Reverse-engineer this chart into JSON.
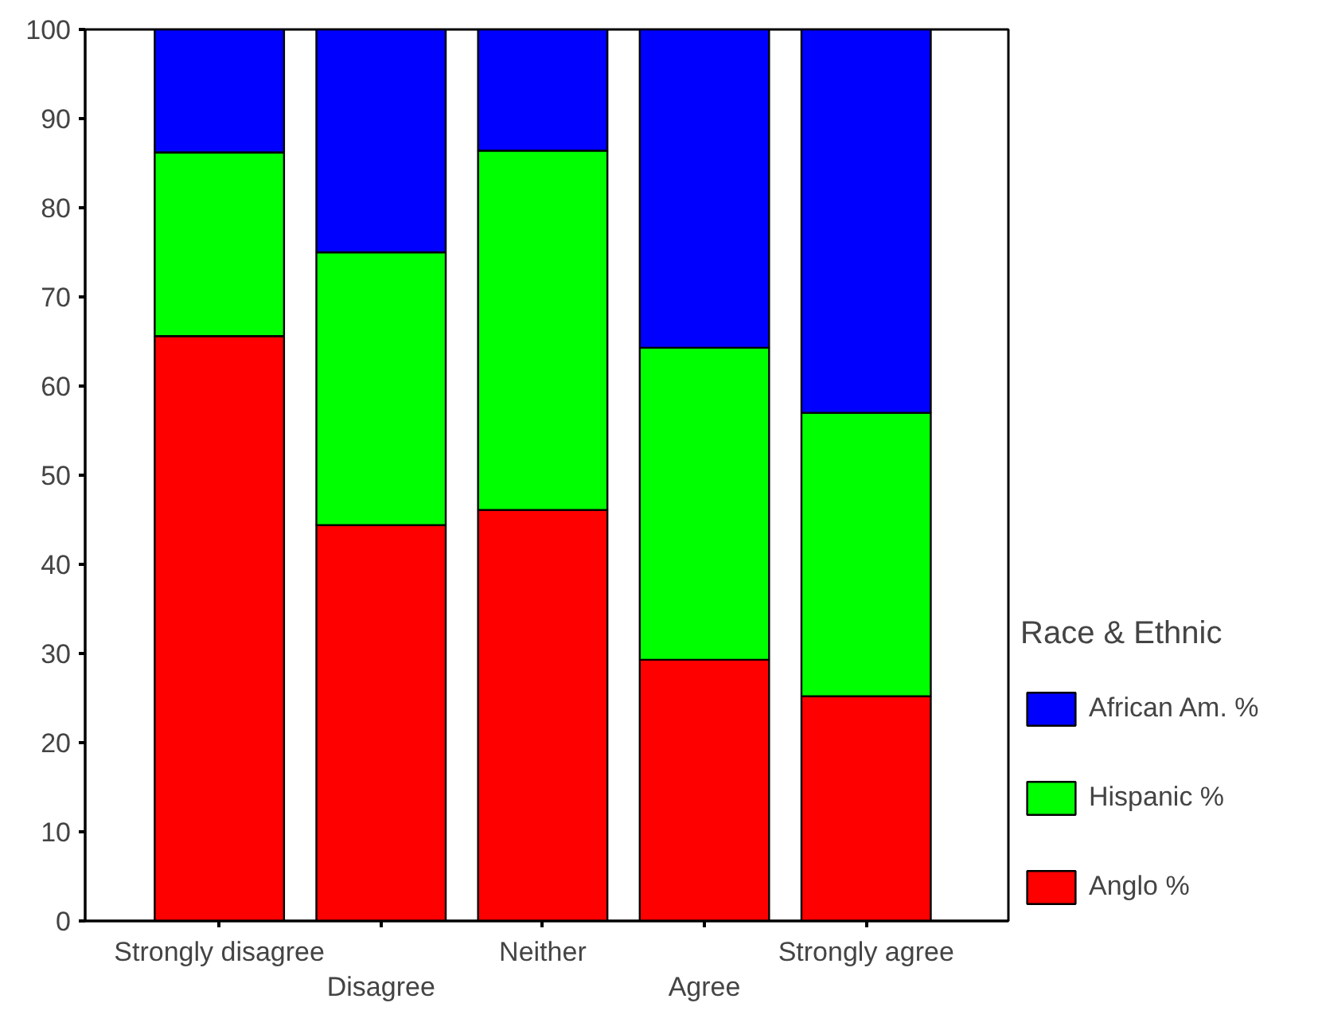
{
  "chart_data": {
    "type": "bar",
    "stacked": true,
    "categories": [
      "Strongly disagree",
      "Disagree",
      "Neither",
      "Agree",
      "Strongly agree"
    ],
    "series": [
      {
        "name": "Anglo %",
        "color": "#ff0000",
        "values": [
          65.6,
          44.4,
          46.1,
          29.3,
          25.2
        ]
      },
      {
        "name": "Hispanic %",
        "color": "#00ff00",
        "values": [
          20.6,
          30.6,
          40.3,
          35.0,
          31.8
        ]
      },
      {
        "name": "African Am. %",
        "color": "#0000ff",
        "values": [
          13.8,
          25.0,
          13.6,
          35.7,
          43.0
        ]
      }
    ],
    "ylim": [
      0,
      100
    ],
    "yticks": [
      0,
      10,
      20,
      30,
      40,
      50,
      60,
      70,
      80,
      90,
      100
    ],
    "legend": "right",
    "legend_title": "Race & Ethnic"
  }
}
